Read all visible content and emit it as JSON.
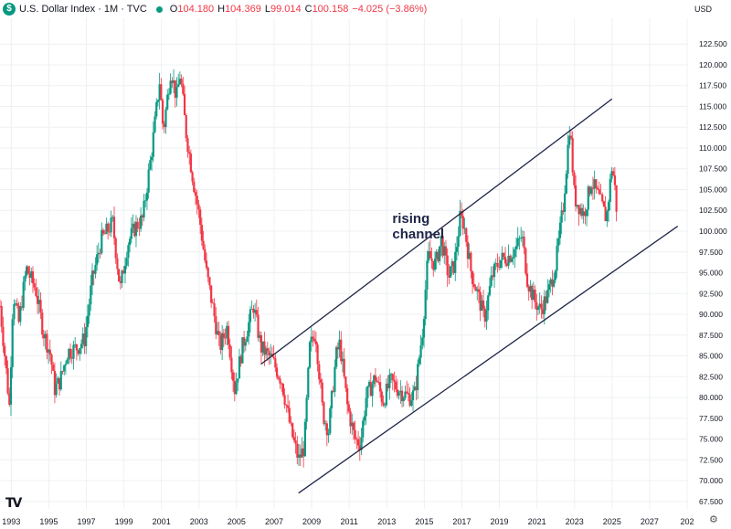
{
  "legend": {
    "symbol_badge": "$",
    "title": "U.S. Dollar Index · 1M · TVC",
    "status_color": "#089981",
    "o_label": "O",
    "o_value": "104.180",
    "h_label": "H",
    "h_value": "104.369",
    "l_label": "L",
    "l_value": "99.014",
    "c_label": "C",
    "c_value": "100.158",
    "change": "−4.025 (−3.86%)"
  },
  "currency": "USD",
  "logo_text": "TV",
  "settings_icon": "gear-icon",
  "colors": {
    "up": "#089981",
    "down": "#f23645",
    "channel": "#1e2547",
    "grid": "#eef0f3"
  },
  "chart_data": {
    "type": "candlestick",
    "x_axis": {
      "tick_labels": [
        "1993",
        "1995",
        "1997",
        "1999",
        "2001",
        "2003",
        "2005",
        "2007",
        "2009",
        "2011",
        "2013",
        "2015",
        "2017",
        "2019",
        "2021",
        "2023",
        "2025",
        "2027",
        "202"
      ],
      "range": [
        1992.4,
        2029.0
      ]
    },
    "y_axis": {
      "position": "right",
      "tick_values": [
        "67.500",
        "70.000",
        "72.500",
        "75.000",
        "77.500",
        "80.000",
        "82.500",
        "85.000",
        "87.500",
        "90.000",
        "92.500",
        "95.000",
        "97.500",
        "100.000",
        "102.500",
        "105.000",
        "107.500",
        "110.000",
        "112.500",
        "115.000",
        "117.500",
        "120.000",
        "122.500"
      ],
      "range": [
        66.6,
        125.6
      ]
    },
    "grid": true,
    "series_anchor_points": [
      {
        "t": 1992.4,
        "v": 91.0
      },
      {
        "t": 1992.7,
        "v": 84.0
      },
      {
        "t": 1992.9,
        "v": 79.0
      },
      {
        "t": 1993.1,
        "v": 92.5
      },
      {
        "t": 1993.4,
        "v": 89.0
      },
      {
        "t": 1993.8,
        "v": 95.5
      },
      {
        "t": 1994.3,
        "v": 93.0
      },
      {
        "t": 1994.7,
        "v": 88.0
      },
      {
        "t": 1995.1,
        "v": 85.0
      },
      {
        "t": 1995.3,
        "v": 81.0
      },
      {
        "t": 1995.6,
        "v": 82.0
      },
      {
        "t": 1996.0,
        "v": 85.5
      },
      {
        "t": 1996.5,
        "v": 86.0
      },
      {
        "t": 1996.9,
        "v": 87.0
      },
      {
        "t": 1997.3,
        "v": 94.0
      },
      {
        "t": 1997.8,
        "v": 99.0
      },
      {
        "t": 1998.4,
        "v": 101.0
      },
      {
        "t": 1998.8,
        "v": 93.0
      },
      {
        "t": 1999.2,
        "v": 98.5
      },
      {
        "t": 1999.6,
        "v": 100.5
      },
      {
        "t": 2000.0,
        "v": 101.5
      },
      {
        "t": 2000.5,
        "v": 110.0
      },
      {
        "t": 2000.9,
        "v": 118.0
      },
      {
        "t": 2001.1,
        "v": 112.0
      },
      {
        "t": 2001.5,
        "v": 119.5
      },
      {
        "t": 2001.8,
        "v": 116.0
      },
      {
        "t": 2002.0,
        "v": 119.0
      },
      {
        "t": 2002.3,
        "v": 112.0
      },
      {
        "t": 2002.7,
        "v": 106.0
      },
      {
        "t": 2003.0,
        "v": 102.0
      },
      {
        "t": 2003.4,
        "v": 95.0
      },
      {
        "t": 2003.8,
        "v": 90.0
      },
      {
        "t": 2004.1,
        "v": 86.0
      },
      {
        "t": 2004.5,
        "v": 88.5
      },
      {
        "t": 2004.9,
        "v": 81.0
      },
      {
        "t": 2005.3,
        "v": 86.0
      },
      {
        "t": 2005.9,
        "v": 91.0
      },
      {
        "t": 2006.3,
        "v": 86.0
      },
      {
        "t": 2006.9,
        "v": 84.5
      },
      {
        "t": 2007.4,
        "v": 82.0
      },
      {
        "t": 2007.9,
        "v": 76.0
      },
      {
        "t": 2008.3,
        "v": 72.5
      },
      {
        "t": 2008.6,
        "v": 74.0
      },
      {
        "t": 2008.9,
        "v": 86.0
      },
      {
        "t": 2009.2,
        "v": 88.0
      },
      {
        "t": 2009.6,
        "v": 78.0
      },
      {
        "t": 2009.9,
        "v": 76.0
      },
      {
        "t": 2010.3,
        "v": 85.0
      },
      {
        "t": 2010.5,
        "v": 86.5
      },
      {
        "t": 2010.9,
        "v": 79.0
      },
      {
        "t": 2011.3,
        "v": 75.0
      },
      {
        "t": 2011.6,
        "v": 74.5
      },
      {
        "t": 2011.9,
        "v": 80.0
      },
      {
        "t": 2012.4,
        "v": 82.5
      },
      {
        "t": 2012.8,
        "v": 79.5
      },
      {
        "t": 2013.2,
        "v": 82.0
      },
      {
        "t": 2013.6,
        "v": 81.0
      },
      {
        "t": 2014.2,
        "v": 80.0
      },
      {
        "t": 2014.5,
        "v": 80.5
      },
      {
        "t": 2014.9,
        "v": 88.0
      },
      {
        "t": 2015.2,
        "v": 97.0
      },
      {
        "t": 2015.6,
        "v": 96.0
      },
      {
        "t": 2015.9,
        "v": 99.0
      },
      {
        "t": 2016.3,
        "v": 94.5
      },
      {
        "t": 2016.6,
        "v": 96.0
      },
      {
        "t": 2016.9,
        "v": 101.5
      },
      {
        "t": 2017.1,
        "v": 101.0
      },
      {
        "t": 2017.5,
        "v": 95.0
      },
      {
        "t": 2017.9,
        "v": 92.0
      },
      {
        "t": 2018.2,
        "v": 89.5
      },
      {
        "t": 2018.6,
        "v": 94.5
      },
      {
        "t": 2019.0,
        "v": 96.5
      },
      {
        "t": 2019.5,
        "v": 97.0
      },
      {
        "t": 2019.9,
        "v": 98.0
      },
      {
        "t": 2020.2,
        "v": 99.5
      },
      {
        "t": 2020.5,
        "v": 94.0
      },
      {
        "t": 2020.9,
        "v": 91.5
      },
      {
        "t": 2021.2,
        "v": 90.5
      },
      {
        "t": 2021.6,
        "v": 92.5
      },
      {
        "t": 2022.0,
        "v": 96.0
      },
      {
        "t": 2022.4,
        "v": 103.0
      },
      {
        "t": 2022.75,
        "v": 113.0
      },
      {
        "t": 2023.0,
        "v": 104.0
      },
      {
        "t": 2023.5,
        "v": 102.0
      },
      {
        "t": 2023.9,
        "v": 106.0
      },
      {
        "t": 2024.3,
        "v": 104.0
      },
      {
        "t": 2024.7,
        "v": 101.5
      },
      {
        "t": 2025.0,
        "v": 108.0
      },
      {
        "t": 2025.2,
        "v": 104.2
      },
      {
        "t": 2025.3,
        "v": 100.2
      }
    ],
    "channel_lines": [
      {
        "name": "upper",
        "from": {
          "t": 2006.3,
          "v": 84.0
        },
        "to": {
          "t": 2025.0,
          "v": 115.9
        }
      },
      {
        "name": "lower",
        "from": {
          "t": 2008.3,
          "v": 68.5
        },
        "to": {
          "t": 2028.5,
          "v": 100.6
        }
      }
    ],
    "annotations": [
      {
        "text": "rising channel",
        "lines": [
          "rising",
          "channel"
        ],
        "t": 2013.3,
        "v": 101.0
      }
    ]
  }
}
